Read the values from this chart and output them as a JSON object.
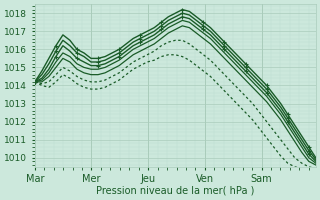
{
  "background_color": "#cce8dc",
  "plot_bg_color": "#cce8dc",
  "grid_color_major": "#aaccbb",
  "grid_color_minor": "#bbddd0",
  "line_color": "#1a5c28",
  "xlabel": "Pression niveau de la mer( hPa )",
  "ylim": [
    1009.5,
    1018.5
  ],
  "yticks": [
    1010,
    1011,
    1012,
    1013,
    1014,
    1015,
    1016,
    1017,
    1018
  ],
  "day_labels": [
    "Mar",
    "Mer",
    "Jeu",
    "Ven",
    "Sam"
  ],
  "day_positions": [
    0,
    24,
    48,
    72,
    96
  ],
  "total_points": 120,
  "series": [
    {
      "y": [
        1014.2,
        1014.8,
        1015.5,
        1016.2,
        1016.8,
        1016.5,
        1016.0,
        1015.8,
        1015.5,
        1015.5,
        1015.6,
        1015.8,
        1016.0,
        1016.3,
        1016.6,
        1016.8,
        1017.0,
        1017.2,
        1017.5,
        1017.8,
        1018.0,
        1018.2,
        1018.1,
        1017.8,
        1017.5,
        1017.2,
        1016.8,
        1016.4,
        1016.0,
        1015.6,
        1015.2,
        1014.8,
        1014.4,
        1014.0,
        1013.5,
        1013.0,
        1012.4,
        1011.8,
        1011.2,
        1010.6,
        1010.0
      ],
      "style": "solid_marker",
      "lw": 1.0
    },
    {
      "y": [
        1014.2,
        1014.6,
        1015.2,
        1015.9,
        1016.5,
        1016.2,
        1015.8,
        1015.6,
        1015.3,
        1015.3,
        1015.4,
        1015.6,
        1015.8,
        1016.1,
        1016.4,
        1016.6,
        1016.8,
        1017.0,
        1017.3,
        1017.6,
        1017.8,
        1018.0,
        1017.9,
        1017.6,
        1017.3,
        1017.0,
        1016.6,
        1016.2,
        1015.8,
        1015.4,
        1015.0,
        1014.6,
        1014.2,
        1013.8,
        1013.3,
        1012.8,
        1012.2,
        1011.6,
        1011.0,
        1010.4,
        1009.9
      ],
      "style": "solid_marker",
      "lw": 1.0
    },
    {
      "y": [
        1014.2,
        1014.4,
        1014.9,
        1015.6,
        1016.2,
        1015.9,
        1015.5,
        1015.3,
        1015.1,
        1015.1,
        1015.2,
        1015.4,
        1015.6,
        1015.9,
        1016.2,
        1016.4,
        1016.6,
        1016.8,
        1017.1,
        1017.4,
        1017.6,
        1017.8,
        1017.7,
        1017.4,
        1017.1,
        1016.8,
        1016.4,
        1016.0,
        1015.6,
        1015.2,
        1014.8,
        1014.4,
        1014.0,
        1013.6,
        1013.1,
        1012.6,
        1012.0,
        1011.4,
        1010.8,
        1010.2,
        1009.8
      ],
      "style": "solid_marker",
      "lw": 1.0
    },
    {
      "y": [
        1014.2,
        1014.3,
        1014.7,
        1015.3,
        1015.8,
        1015.6,
        1015.2,
        1015.0,
        1014.9,
        1014.9,
        1015.0,
        1015.2,
        1015.4,
        1015.7,
        1016.0,
        1016.2,
        1016.4,
        1016.6,
        1016.9,
        1017.2,
        1017.4,
        1017.6,
        1017.5,
        1017.2,
        1016.9,
        1016.6,
        1016.2,
        1015.8,
        1015.4,
        1015.0,
        1014.6,
        1014.2,
        1013.8,
        1013.4,
        1012.9,
        1012.4,
        1011.8,
        1011.2,
        1010.6,
        1010.0,
        1009.7
      ],
      "style": "solid",
      "lw": 0.9
    },
    {
      "y": [
        1014.2,
        1014.2,
        1014.5,
        1015.0,
        1015.5,
        1015.3,
        1014.9,
        1014.7,
        1014.6,
        1014.6,
        1014.7,
        1014.9,
        1015.1,
        1015.4,
        1015.7,
        1015.9,
        1016.1,
        1016.3,
        1016.6,
        1016.9,
        1017.1,
        1017.3,
        1017.2,
        1016.9,
        1016.6,
        1016.3,
        1015.9,
        1015.5,
        1015.1,
        1014.7,
        1014.3,
        1013.9,
        1013.5,
        1013.1,
        1012.6,
        1012.1,
        1011.5,
        1010.9,
        1010.3,
        1009.8,
        1009.6
      ],
      "style": "solid",
      "lw": 0.9
    },
    {
      "y": [
        1014.2,
        1014.1,
        1014.2,
        1014.6,
        1015.0,
        1014.8,
        1014.5,
        1014.3,
        1014.2,
        1014.2,
        1014.3,
        1014.5,
        1014.7,
        1015.0,
        1015.3,
        1015.5,
        1015.7,
        1015.9,
        1016.2,
        1016.4,
        1016.5,
        1016.5,
        1016.3,
        1016.0,
        1015.7,
        1015.4,
        1015.0,
        1014.6,
        1014.2,
        1013.8,
        1013.4,
        1013.0,
        1012.5,
        1012.0,
        1011.5,
        1011.0,
        1010.5,
        1010.0,
        1009.7,
        1009.5,
        1009.4
      ],
      "style": "dotted",
      "lw": 0.9
    },
    {
      "y": [
        1014.2,
        1014.0,
        1013.9,
        1014.2,
        1014.6,
        1014.4,
        1014.1,
        1013.9,
        1013.8,
        1013.8,
        1013.9,
        1014.1,
        1014.3,
        1014.6,
        1014.9,
        1015.1,
        1015.3,
        1015.4,
        1015.6,
        1015.7,
        1015.7,
        1015.6,
        1015.4,
        1015.1,
        1014.8,
        1014.5,
        1014.1,
        1013.7,
        1013.3,
        1012.9,
        1012.5,
        1012.1,
        1011.6,
        1011.1,
        1010.6,
        1010.1,
        1009.7,
        1009.5,
        1009.4,
        1009.4,
        1009.4
      ],
      "style": "dotted",
      "lw": 0.9
    }
  ]
}
